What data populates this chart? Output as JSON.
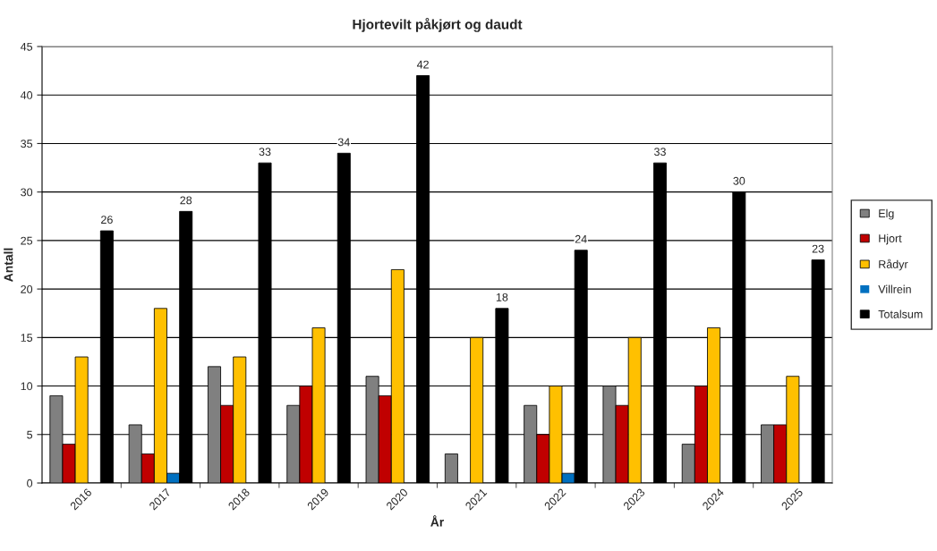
{
  "chart_data": {
    "type": "bar",
    "title": "Hjortevilt påkjørt og daudt",
    "xlabel": "År",
    "ylabel": "Antall",
    "categories": [
      "2016",
      "2017",
      "2018",
      "2019",
      "2020",
      "2021",
      "2022",
      "2023",
      "2024",
      "2025"
    ],
    "series": [
      {
        "name": "Elg",
        "color": "#808080",
        "values": [
          9,
          6,
          12,
          8,
          11,
          3,
          8,
          10,
          4,
          6
        ]
      },
      {
        "name": "Hjort",
        "color": "#c00000",
        "values": [
          4,
          3,
          8,
          10,
          9,
          0,
          5,
          8,
          10,
          6
        ]
      },
      {
        "name": "Rådyr",
        "color": "#ffc000",
        "values": [
          13,
          18,
          13,
          16,
          22,
          15,
          10,
          15,
          16,
          11
        ]
      },
      {
        "name": "Villrein",
        "color": "#0070c0",
        "values": [
          0,
          1,
          0,
          0,
          0,
          0,
          1,
          0,
          0,
          0
        ]
      },
      {
        "name": "Totalsum",
        "color": "#000000",
        "values": [
          26,
          28,
          33,
          34,
          42,
          18,
          24,
          33,
          30,
          23
        ],
        "value_labels": [
          "26",
          "28",
          "33",
          "34",
          "42",
          "18",
          "24",
          "33",
          "30",
          "23"
        ]
      }
    ],
    "ylim": [
      0,
      45
    ],
    "yticks": [
      0,
      5,
      10,
      15,
      20,
      25,
      30,
      35,
      40,
      45
    ],
    "grid": "y",
    "legend": "right"
  }
}
